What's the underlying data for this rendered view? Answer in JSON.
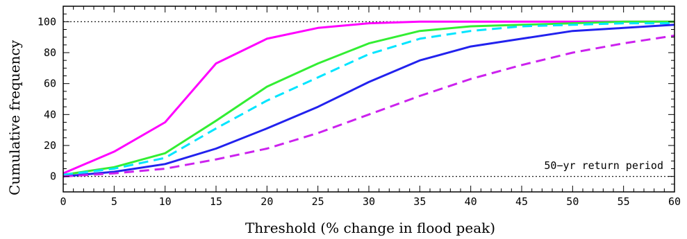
{
  "chart_data": {
    "type": "line",
    "xlabel": "Threshold (% change in flood peak)",
    "ylabel": "Cumulative frequency",
    "xlim": [
      0,
      60
    ],
    "ylim": [
      -10,
      110
    ],
    "xticks": [
      0,
      5,
      10,
      15,
      20,
      25,
      30,
      35,
      40,
      45,
      50,
      55,
      60
    ],
    "yticks": [
      0,
      20,
      40,
      60,
      80,
      100
    ],
    "reference_lines_y": [
      0,
      100
    ],
    "annotation": "50−yr return period",
    "x": [
      0,
      5,
      10,
      15,
      20,
      25,
      30,
      35,
      40,
      45,
      50,
      55,
      60
    ],
    "series": [
      {
        "color": "#ff00ff",
        "dash": "solid",
        "values": [
          2,
          16,
          35,
          73,
          89,
          96,
          99,
          100,
          100,
          100,
          100,
          100,
          100
        ]
      },
      {
        "color": "#33ee33",
        "dash": "solid",
        "values": [
          1,
          6,
          15,
          36,
          58,
          73,
          86,
          94,
          97,
          98,
          99,
          100,
          100
        ]
      },
      {
        "color": "#00e5ff",
        "dash": "dashed",
        "values": [
          1,
          5,
          12,
          31,
          49,
          64,
          79,
          89,
          94,
          97,
          98,
          99,
          99
        ]
      },
      {
        "color": "#2222ee",
        "dash": "solid",
        "values": [
          0,
          3,
          8,
          18,
          31,
          45,
          61,
          75,
          84,
          89,
          94,
          96,
          98
        ]
      },
      {
        "color": "#cc22ee",
        "dash": "dashed",
        "values": [
          0,
          2,
          5,
          11,
          18,
          28,
          40,
          52,
          63,
          72,
          80,
          86,
          91
        ]
      }
    ]
  }
}
